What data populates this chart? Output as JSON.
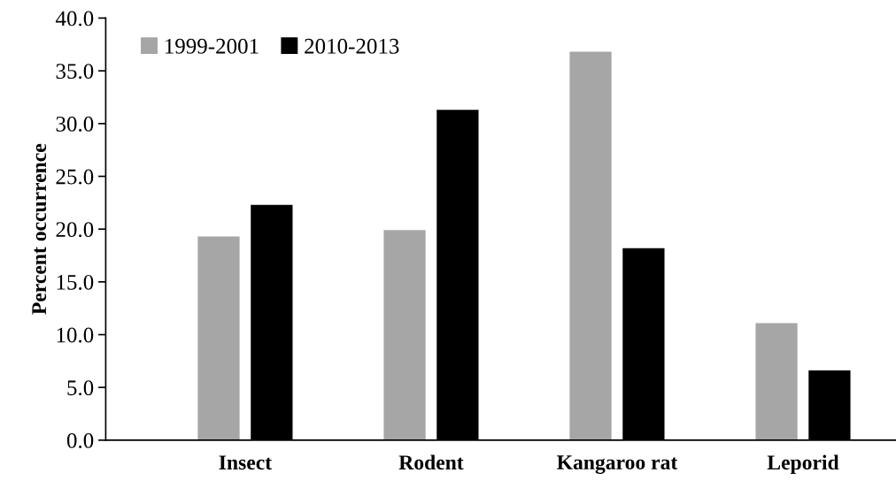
{
  "chart_data": {
    "type": "bar",
    "ylabel": "Percent occurrence",
    "categories": [
      "Insect",
      "Rodent",
      "Kangaroo rat",
      "Leporid"
    ],
    "series": [
      {
        "name": "1999-2001",
        "color": "#a6a6a6",
        "values": [
          19.3,
          19.9,
          36.8,
          11.1
        ]
      },
      {
        "name": "2010-2013",
        "color": "#000000",
        "values": [
          22.3,
          31.3,
          18.2,
          6.6
        ]
      }
    ],
    "ylim": [
      0,
      40
    ],
    "yticks": [
      {
        "value": 0,
        "label": "0.0"
      },
      {
        "value": 5,
        "label": "5.0"
      },
      {
        "value": 10,
        "label": "10.0"
      },
      {
        "value": 15,
        "label": "15.0"
      },
      {
        "value": 20,
        "label": "20.0"
      },
      {
        "value": 25,
        "label": "25.0"
      },
      {
        "value": 30,
        "label": "30.0"
      },
      {
        "value": 35,
        "label": "35.0"
      },
      {
        "value": 40,
        "label": "40.0"
      }
    ],
    "grid": false,
    "legend": "top left"
  }
}
